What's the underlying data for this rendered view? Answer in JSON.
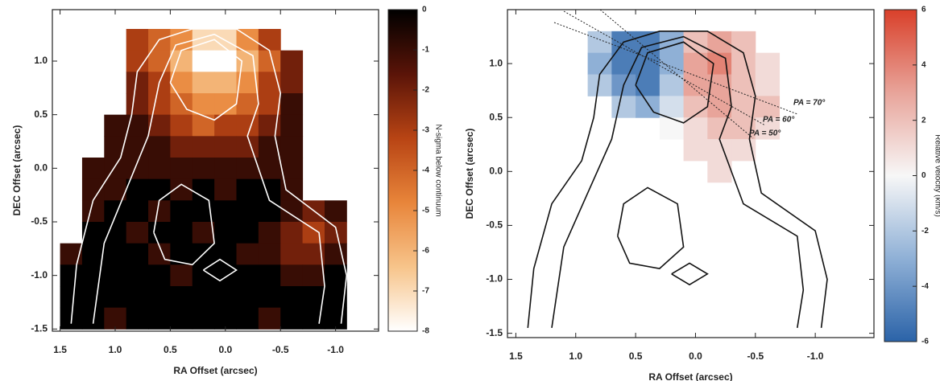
{
  "chart_data": [
    {
      "type": "heatmap",
      "x_label": "RA Offset (arcsec)",
      "y_label": "DEC Offset (arcsec)",
      "xlim": [
        1.57,
        -1.39
      ],
      "ylim": [
        -1.52,
        1.48
      ],
      "xticks": [
        1.5,
        {
          "value": 1,
          "label": "1.0"
        },
        0.5,
        {
          "value": 0,
          "label": "0.0"
        },
        -0.5,
        {
          "value": -1,
          "label": "-1.0"
        }
      ],
      "yticks": [
        -1.5,
        {
          "value": -1,
          "label": "-1.0"
        },
        -0.5,
        {
          "value": 0,
          "label": "0.0"
        },
        0.5,
        {
          "value": 1,
          "label": "1.0"
        }
      ],
      "x": [
        1.4,
        1.2,
        1.0,
        0.8,
        0.6,
        0.4,
        0.2,
        0.0,
        -0.2,
        -0.4,
        -0.6,
        -0.8,
        -1.0,
        -1.2
      ],
      "y": [
        1.2,
        1.0,
        0.8,
        0.6,
        0.4,
        0.2,
        0.0,
        -0.2,
        -0.4,
        -0.6,
        -0.8,
        -1.0,
        -1.2,
        -1.4
      ],
      "z": [
        [
          null,
          null,
          null,
          -3,
          -4,
          -5,
          -7,
          -7,
          -5,
          -3,
          null,
          null,
          null,
          null
        ],
        [
          null,
          null,
          null,
          -3,
          -4,
          -6,
          -8,
          -8,
          -6,
          -4,
          -2,
          null,
          null,
          null
        ],
        [
          null,
          null,
          null,
          -2,
          -3,
          -5,
          -6,
          -6,
          -5,
          -3,
          -2,
          null,
          null,
          null
        ],
        [
          null,
          null,
          null,
          -2,
          -3,
          -4,
          -5,
          -5,
          -4,
          -3,
          -1,
          null,
          null,
          null
        ],
        [
          null,
          null,
          -1,
          -1,
          -2,
          -3,
          -4,
          -3,
          -3,
          -2,
          -1,
          null,
          null,
          null
        ],
        [
          null,
          null,
          -1,
          -1,
          -1,
          -2,
          -2,
          -2,
          -2,
          -1,
          -1,
          null,
          null,
          null
        ],
        [
          null,
          -1,
          -1,
          -1,
          -1,
          -1,
          -1,
          -1,
          -1,
          -1,
          -1,
          null,
          null,
          null
        ],
        [
          null,
          -1,
          -1,
          0,
          0,
          -1,
          0,
          -1,
          0,
          0,
          -1,
          null,
          null,
          null
        ],
        [
          null,
          -1,
          0,
          0,
          -1,
          0,
          0,
          0,
          0,
          0,
          -1,
          -2,
          -1,
          null
        ],
        [
          null,
          0,
          0,
          -1,
          0,
          0,
          -1,
          0,
          0,
          -1,
          -2,
          -3,
          -2,
          null
        ],
        [
          -1,
          0,
          0,
          0,
          -1,
          0,
          0,
          0,
          -1,
          -1,
          -2,
          -2,
          -1,
          null
        ],
        [
          0,
          0,
          0,
          0,
          0,
          -1,
          0,
          0,
          0,
          0,
          -1,
          -1,
          0,
          null
        ],
        [
          0,
          0,
          0,
          0,
          0,
          0,
          0,
          0,
          0,
          0,
          0,
          0,
          0,
          null
        ],
        [
          0,
          0,
          -1,
          0,
          0,
          0,
          0,
          0,
          0,
          -1,
          0,
          0,
          0,
          null
        ]
      ],
      "colorbar": {
        "label": "N-sigma below continuum",
        "lim": [
          -8,
          0
        ],
        "ticks": [
          0,
          -1,
          -2,
          -3,
          -4,
          -5,
          -6,
          -7,
          -8
        ],
        "colormap": [
          "#ffffff",
          "#f7c48a",
          "#e8853a",
          "#b84414",
          "#5a1408",
          "#000000"
        ]
      },
      "contour_color": "#ffffff",
      "contours": [
        {
          "x": [
            1.4,
            1.35,
            1.2,
            0.95,
            0.85,
            0.8,
            0.6,
            0.3,
            -0.1,
            -0.4,
            -0.5,
            -0.45,
            -0.55,
            -1.0,
            -1.1,
            -1.05
          ],
          "y": [
            -1.45,
            -0.9,
            -0.3,
            0.1,
            0.5,
            0.9,
            1.2,
            1.3,
            1.3,
            1.1,
            0.7,
            0.3,
            -0.2,
            -0.55,
            -1.0,
            -1.45
          ]
        },
        {
          "x": [
            1.2,
            1.1,
            0.9,
            0.7,
            0.6,
            0.45,
            0.1,
            -0.25,
            -0.3,
            -0.2,
            -0.4,
            -0.85,
            -0.9,
            -0.85
          ],
          "y": [
            -1.45,
            -0.7,
            -0.2,
            0.3,
            0.8,
            1.15,
            1.25,
            1.05,
            0.6,
            0.3,
            -0.3,
            -0.6,
            -1.1,
            -1.45
          ]
        },
        {
          "x": [
            0.5,
            0.4,
            0.1,
            -0.15,
            -0.1,
            0.1,
            0.35,
            0.5
          ],
          "y": [
            0.8,
            1.1,
            1.2,
            1.0,
            0.6,
            0.45,
            0.55,
            0.8
          ]
        },
        {
          "x": [
            0.65,
            0.6,
            0.4,
            0.15,
            0.1,
            0.3,
            0.55,
            0.65
          ],
          "y": [
            -0.6,
            -0.3,
            -0.15,
            -0.3,
            -0.7,
            -0.9,
            -0.85,
            -0.6
          ]
        },
        {
          "x": [
            0.2,
            0.05,
            -0.1,
            0.05,
            0.2
          ],
          "y": [
            -0.95,
            -0.85,
            -0.95,
            -1.05,
            -0.95
          ]
        }
      ]
    },
    {
      "type": "heatmap",
      "x_label": "RA Offset (arcsec)",
      "y_label": "DEC Offset (arcsec)",
      "xlim": [
        1.57,
        -1.49
      ],
      "ylim": [
        -1.54,
        1.5
      ],
      "xticks": [
        1.5,
        {
          "value": 1,
          "label": "1.0"
        },
        0.5,
        {
          "value": 0,
          "label": "0.0"
        },
        -0.5,
        {
          "value": -1,
          "label": "-1.0"
        }
      ],
      "yticks": [
        -1.5,
        {
          "value": -1,
          "label": "-1.0"
        },
        -0.5,
        {
          "value": 0,
          "label": "0.0"
        },
        0.5,
        {
          "value": 1,
          "label": "1.0"
        }
      ],
      "x": [
        1.4,
        1.2,
        1.0,
        0.8,
        0.6,
        0.4,
        0.2,
        0.0,
        -0.2,
        -0.4,
        -0.6,
        -0.8,
        -1.0,
        -1.2
      ],
      "y": [
        1.2,
        1.0,
        0.8,
        0.6,
        0.4,
        0.2,
        0.0
      ],
      "z": [
        [
          null,
          null,
          null,
          -2,
          -5,
          -5,
          -3,
          2,
          3,
          2,
          null,
          null,
          null,
          null
        ],
        [
          null,
          null,
          null,
          -3,
          -5,
          -5,
          -3,
          3,
          4,
          2,
          1,
          null,
          null,
          null
        ],
        [
          null,
          null,
          null,
          -2,
          -4,
          -5,
          -2,
          3,
          3,
          2,
          1,
          null,
          null,
          null
        ],
        [
          null,
          null,
          null,
          null,
          -2,
          -3,
          -1,
          2,
          3,
          2,
          2,
          null,
          null,
          null
        ],
        [
          null,
          null,
          null,
          null,
          null,
          null,
          0,
          1,
          2,
          2,
          1,
          null,
          null,
          null
        ],
        [
          null,
          null,
          null,
          null,
          null,
          null,
          null,
          1,
          1,
          1,
          null,
          null,
          null,
          null
        ],
        [
          null,
          null,
          null,
          null,
          null,
          null,
          null,
          null,
          1,
          null,
          null,
          null,
          null,
          null
        ]
      ],
      "colorbar": {
        "label": "Relative velocity (km/s)",
        "lim": [
          -6,
          6
        ],
        "ticks": [
          6,
          4,
          2,
          0,
          -2,
          -4,
          -6
        ],
        "colormap": [
          "#2b63a8",
          "#8fb0d6",
          "#f7f7f7",
          "#e8a49a",
          "#d9402a"
        ]
      },
      "contour_color": "#111111",
      "contours": [
        {
          "x": [
            1.4,
            1.35,
            1.2,
            0.95,
            0.85,
            0.8,
            0.6,
            0.3,
            -0.1,
            -0.4,
            -0.5,
            -0.45,
            -0.55,
            -1.0,
            -1.1,
            -1.05
          ],
          "y": [
            -1.45,
            -0.9,
            -0.3,
            0.1,
            0.5,
            0.9,
            1.2,
            1.3,
            1.3,
            1.1,
            0.7,
            0.3,
            -0.2,
            -0.55,
            -1.0,
            -1.45
          ]
        },
        {
          "x": [
            1.2,
            1.1,
            0.9,
            0.7,
            0.6,
            0.45,
            0.1,
            -0.25,
            -0.3,
            -0.2,
            -0.4,
            -0.85,
            -0.9,
            -0.85
          ],
          "y": [
            -1.45,
            -0.7,
            -0.2,
            0.3,
            0.8,
            1.15,
            1.25,
            1.05,
            0.6,
            0.3,
            -0.3,
            -0.6,
            -1.1,
            -1.45
          ]
        },
        {
          "x": [
            0.5,
            0.4,
            0.1,
            -0.15,
            -0.1,
            0.1,
            0.35,
            0.5
          ],
          "y": [
            0.8,
            1.1,
            1.2,
            1.0,
            0.6,
            0.45,
            0.55,
            0.8
          ]
        },
        {
          "x": [
            0.65,
            0.6,
            0.4,
            0.15,
            0.1,
            0.3,
            0.55,
            0.65
          ],
          "y": [
            -0.6,
            -0.3,
            -0.15,
            -0.3,
            -0.7,
            -0.9,
            -0.85,
            -0.6
          ]
        },
        {
          "x": [
            0.2,
            0.05,
            -0.1,
            0.05,
            0.2
          ],
          "y": [
            -0.95,
            -0.85,
            -0.95,
            -1.05,
            -0.95
          ]
        }
      ],
      "annotations": [
        "PA = 70°",
        "PA = 60°",
        "PA = 50°"
      ]
    }
  ]
}
